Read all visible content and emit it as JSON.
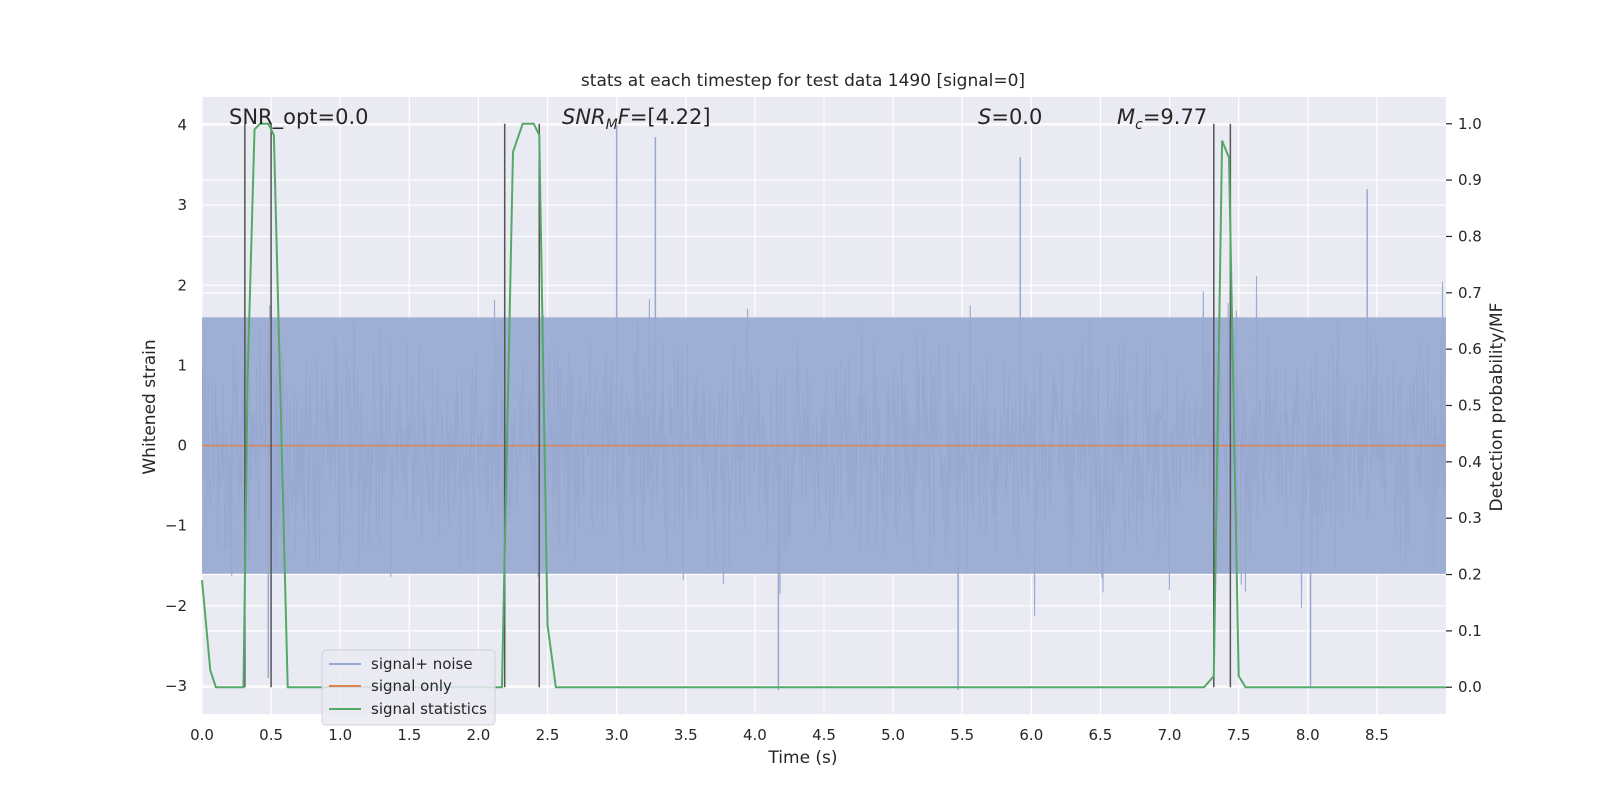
{
  "chart_data": {
    "type": "line",
    "title": "stats at each timestep for test data 1490 [signal=0]",
    "xlabel": "Time (s)",
    "ylabel_left": "Whitened strain",
    "ylabel_right": "Detection probability/MF",
    "xlim": [
      0,
      9
    ],
    "ylim_left": [
      -3.35,
      4.35
    ],
    "ylim_right": [
      -0.0475,
      1.0475
    ],
    "x_ticks": [
      "0.0",
      "0.5",
      "1.0",
      "1.5",
      "2.0",
      "2.5",
      "3.0",
      "3.5",
      "4.0",
      "4.5",
      "5.0",
      "5.5",
      "6.0",
      "6.5",
      "7.0",
      "7.5",
      "8.0",
      "8.5"
    ],
    "x_tick_values": [
      0,
      0.5,
      1,
      1.5,
      2,
      2.5,
      3,
      3.5,
      4,
      4.5,
      5,
      5.5,
      6,
      6.5,
      7,
      7.5,
      8,
      8.5
    ],
    "y_left_ticks": [
      "−3",
      "−2",
      "−1",
      "0",
      "1",
      "2",
      "3",
      "4"
    ],
    "y_left_tick_values": [
      -3,
      -2,
      -1,
      0,
      1,
      2,
      3,
      4
    ],
    "y_right_ticks": [
      "0.0",
      "0.1",
      "0.2",
      "0.3",
      "0.4",
      "0.5",
      "0.6",
      "0.7",
      "0.8",
      "0.9",
      "1.0"
    ],
    "y_right_tick_values": [
      0,
      0.1,
      0.2,
      0.3,
      0.4,
      0.5,
      0.6,
      0.7,
      0.8,
      0.9,
      1.0
    ],
    "grid": true,
    "legend_position": "lower-left",
    "series": [
      {
        "name": "signal+ noise",
        "color": "#97a9d0",
        "axis": "left",
        "description_of_values": "dense whitened strain noise samples roughly within -3 and 4",
        "envelope_typical": [
          -1.6,
          1.6
        ],
        "peaks": [
          {
            "x": 0.48,
            "y": -2.9
          },
          {
            "x": 3.0,
            "y": 4.0
          },
          {
            "x": 3.28,
            "y": 3.85
          },
          {
            "x": 4.17,
            "y": -3.05
          },
          {
            "x": 5.47,
            "y": -3.05
          },
          {
            "x": 5.92,
            "y": 3.6
          },
          {
            "x": 8.02,
            "y": -3.0
          },
          {
            "x": 8.43,
            "y": 3.2
          }
        ]
      },
      {
        "name": "signal only",
        "color": "#dd8452",
        "axis": "left",
        "constant": 0
      },
      {
        "name": "signal statistics",
        "color": "#55a868",
        "axis": "right",
        "x": [
          0.0,
          0.06,
          0.1,
          0.3,
          0.33,
          0.38,
          0.42,
          0.48,
          0.52,
          0.62,
          2.17,
          2.25,
          2.32,
          2.4,
          2.44,
          2.5,
          2.56,
          7.25,
          7.32,
          7.38,
          7.43,
          7.5,
          7.55,
          9.0
        ],
        "values": [
          0.19,
          0.03,
          0.0,
          0.0,
          0.55,
          0.99,
          1.0,
          1.0,
          0.98,
          0.0,
          0.0,
          0.95,
          1.0,
          1.0,
          0.98,
          0.11,
          0.0,
          0.0,
          0.02,
          0.97,
          0.94,
          0.02,
          0.0,
          0.0
        ]
      }
    ],
    "vertical_markers": [
      0.31,
      0.5,
      2.19,
      2.44,
      7.32,
      7.44
    ],
    "annotations": [
      {
        "id": "snr-opt",
        "text": "SNR_opt=0.0",
        "x": 0.2,
        "y": 4.05
      },
      {
        "id": "snr-mf",
        "text": "SNRMF=[4.22]",
        "x": 2.6,
        "y": 4.05
      },
      {
        "id": "s",
        "text": "S=0.0",
        "x": 5.6,
        "y": 4.05
      },
      {
        "id": "mc",
        "text": "Mc=9.77",
        "x": 6.6,
        "y": 4.05
      }
    ]
  }
}
